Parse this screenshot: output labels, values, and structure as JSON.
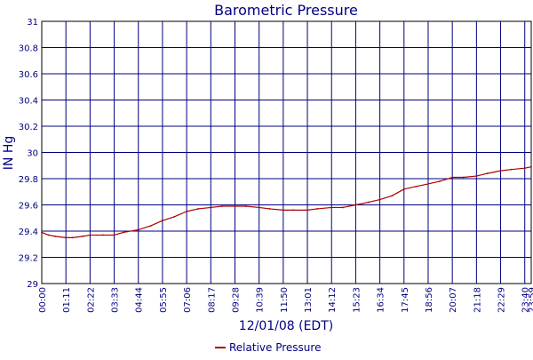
{
  "chart_data": {
    "type": "line",
    "title": "Barometric Pressure",
    "xlabel": "12/01/08 (EDT)",
    "ylabel": "IN Hg",
    "ylim": [
      29,
      31
    ],
    "xlim": [
      "00:00",
      "23:59"
    ],
    "y_ticks": [
      "29",
      "29.2",
      "29.4",
      "29.6",
      "29.8",
      "30",
      "30.2",
      "30.4",
      "30.6",
      "30.8",
      "31"
    ],
    "x_ticks": [
      "00:00",
      "01:11",
      "02:22",
      "03:33",
      "04:44",
      "05:55",
      "07:06",
      "08:17",
      "09:28",
      "10:39",
      "11:50",
      "13:01",
      "14:12",
      "15:23",
      "16:34",
      "17:45",
      "18:56",
      "20:07",
      "21:18",
      "22:29",
      "23:40",
      "23:59"
    ],
    "grid": true,
    "legend_position": "bottom-center",
    "series": [
      {
        "name": "Relative Pressure",
        "color": "#aa0000",
        "x": [
          "00:00",
          "00:20",
          "00:40",
          "01:11",
          "01:30",
          "02:00",
          "02:22",
          "03:00",
          "03:33",
          "04:00",
          "04:44",
          "05:20",
          "05:55",
          "06:30",
          "07:06",
          "07:40",
          "08:17",
          "08:50",
          "09:28",
          "10:00",
          "10:39",
          "11:10",
          "11:50",
          "12:20",
          "13:01",
          "13:30",
          "14:12",
          "14:45",
          "15:23",
          "16:00",
          "16:34",
          "17:10",
          "17:45",
          "18:20",
          "18:56",
          "19:30",
          "20:07",
          "20:40",
          "21:18",
          "21:50",
          "22:29",
          "23:00",
          "23:40",
          "23:59"
        ],
        "values": [
          29.39,
          29.37,
          29.36,
          29.35,
          29.35,
          29.36,
          29.37,
          29.37,
          29.37,
          29.39,
          29.41,
          29.44,
          29.48,
          29.51,
          29.55,
          29.57,
          29.58,
          29.59,
          29.59,
          29.59,
          29.58,
          29.57,
          29.56,
          29.56,
          29.56,
          29.57,
          29.58,
          29.58,
          29.6,
          29.62,
          29.64,
          29.67,
          29.72,
          29.74,
          29.76,
          29.78,
          29.81,
          29.81,
          29.82,
          29.84,
          29.86,
          29.87,
          29.88,
          29.89
        ]
      }
    ]
  },
  "colors": {
    "text": "#000080",
    "grid": "#000080",
    "series": "#aa0000",
    "background": "#ffffff"
  }
}
